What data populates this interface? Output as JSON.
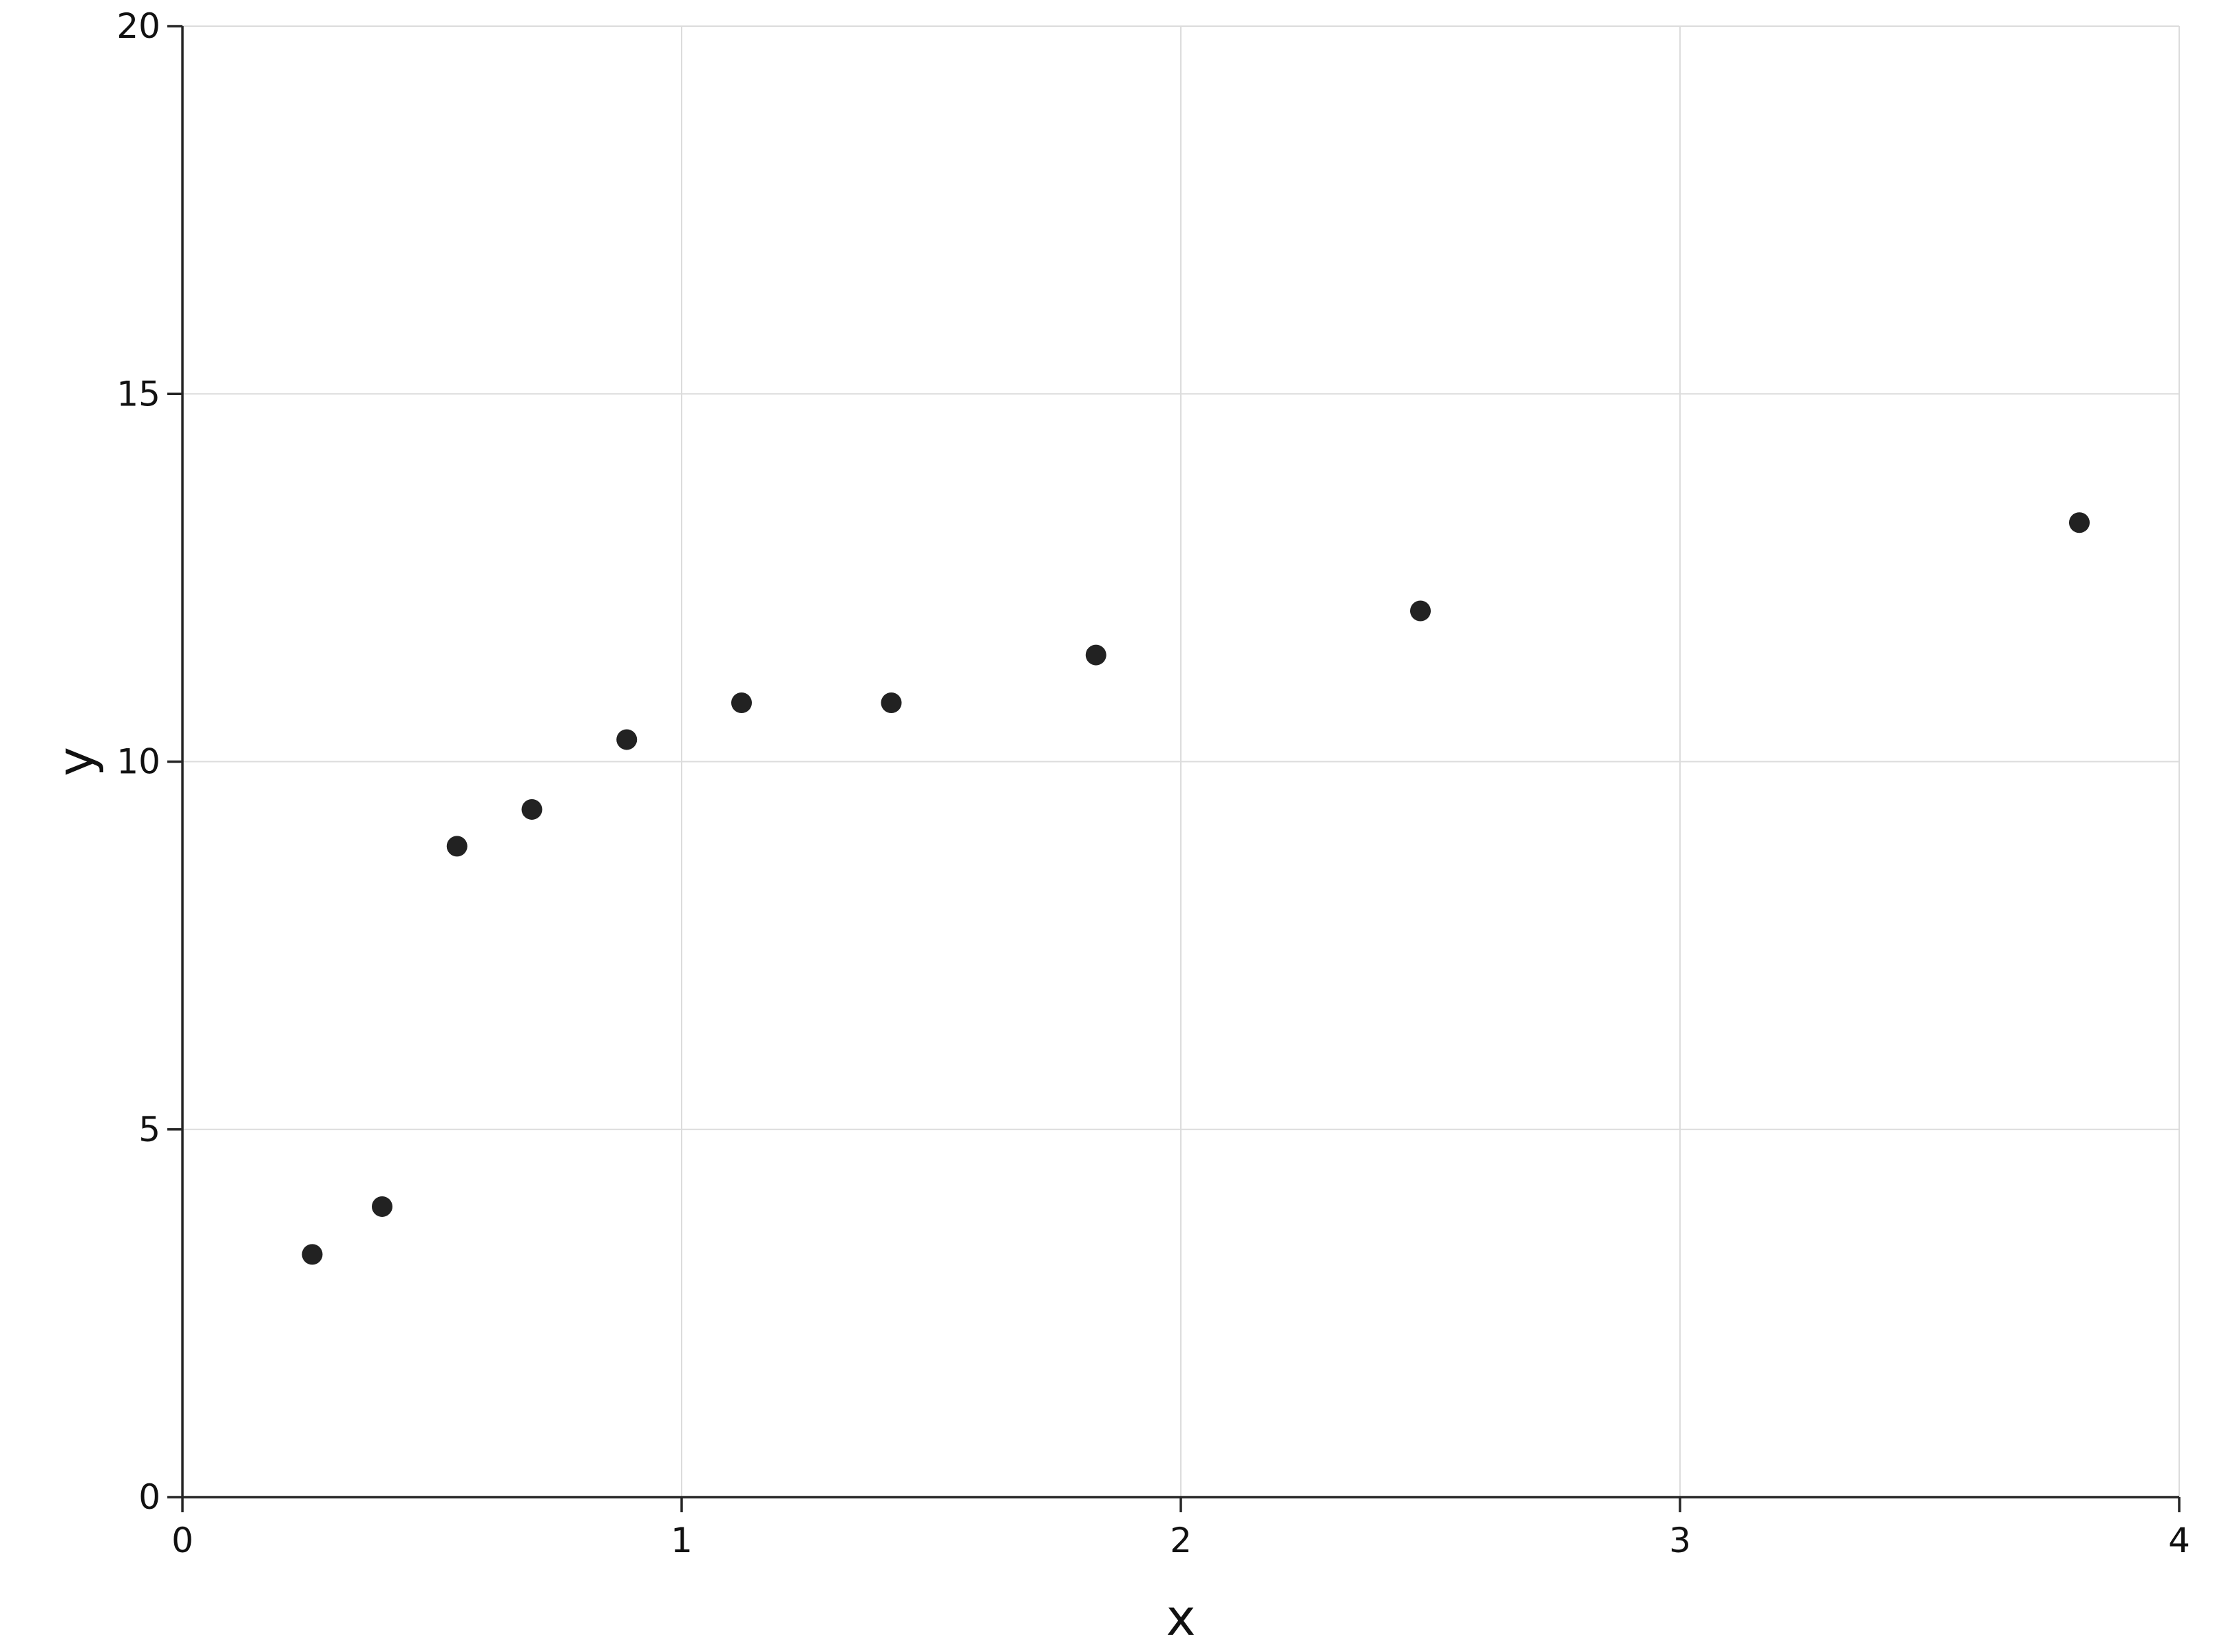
{
  "chart_data": {
    "type": "scatter",
    "title": "",
    "xlabel": "x",
    "ylabel": "y",
    "xlim": [
      0,
      4
    ],
    "ylim": [
      0,
      20
    ],
    "xticks": [
      "0",
      "1",
      "2",
      "3",
      "4"
    ],
    "yticks": [
      "0",
      "5",
      "10",
      "15",
      "20"
    ],
    "grid": true,
    "legend": "none",
    "point_color": "#222222",
    "series": [
      {
        "x": [
          0.26,
          0.4,
          0.55,
          0.7,
          0.89,
          1.12,
          1.42,
          1.83,
          2.48,
          3.8
        ],
        "y": [
          3.3,
          3.95,
          8.85,
          9.35,
          10.3,
          10.8,
          10.8,
          11.45,
          12.05,
          13.25
        ]
      }
    ]
  }
}
